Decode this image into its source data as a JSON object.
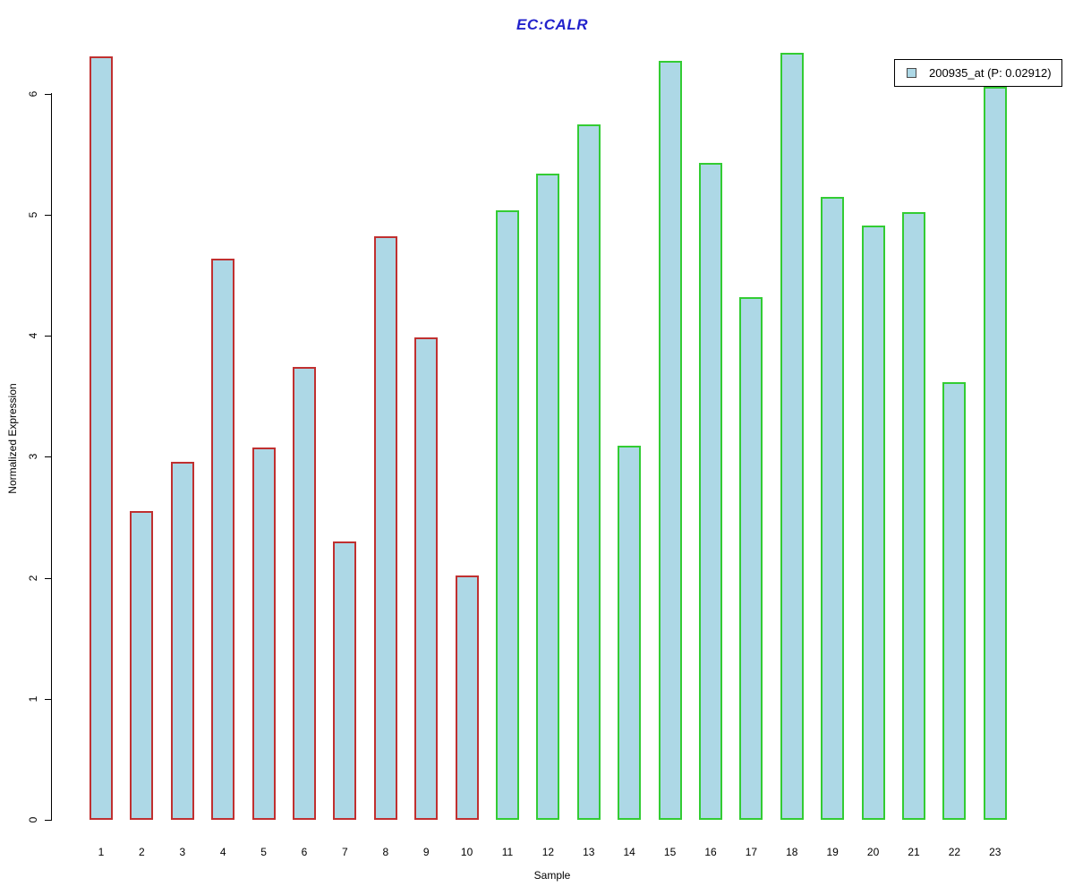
{
  "chart_data": {
    "type": "bar",
    "title": "EC:CALR",
    "xlabel": "Sample",
    "ylabel": "Normalized Expression",
    "categories": [
      "1",
      "2",
      "3",
      "4",
      "5",
      "6",
      "7",
      "8",
      "9",
      "10",
      "11",
      "12",
      "13",
      "14",
      "15",
      "16",
      "17",
      "18",
      "19",
      "20",
      "21",
      "22",
      "23"
    ],
    "values": [
      6.31,
      2.55,
      2.96,
      4.64,
      3.08,
      3.74,
      2.3,
      4.82,
      3.99,
      2.02,
      5.04,
      5.34,
      5.75,
      3.09,
      6.27,
      5.43,
      4.32,
      6.34,
      5.15,
      4.91,
      5.02,
      3.62,
      6.06
    ],
    "bar_outline_groups": [
      "red",
      "red",
      "red",
      "red",
      "red",
      "red",
      "red",
      "red",
      "red",
      "red",
      "green",
      "green",
      "green",
      "green",
      "green",
      "green",
      "green",
      "green",
      "green",
      "green",
      "green",
      "green",
      "green"
    ],
    "yticks": [
      0,
      1,
      2,
      3,
      4,
      5,
      6
    ],
    "ylim": [
      0,
      6.5
    ],
    "grid": false,
    "legend": {
      "label": "200935_at (P: 0.02912)",
      "position": "top-right"
    },
    "colors": {
      "bar_fill": "#ADD8E6",
      "outline_red": "#C03030",
      "outline_green": "#33CC33",
      "title": "#2222CC",
      "axis": "#000000"
    }
  }
}
